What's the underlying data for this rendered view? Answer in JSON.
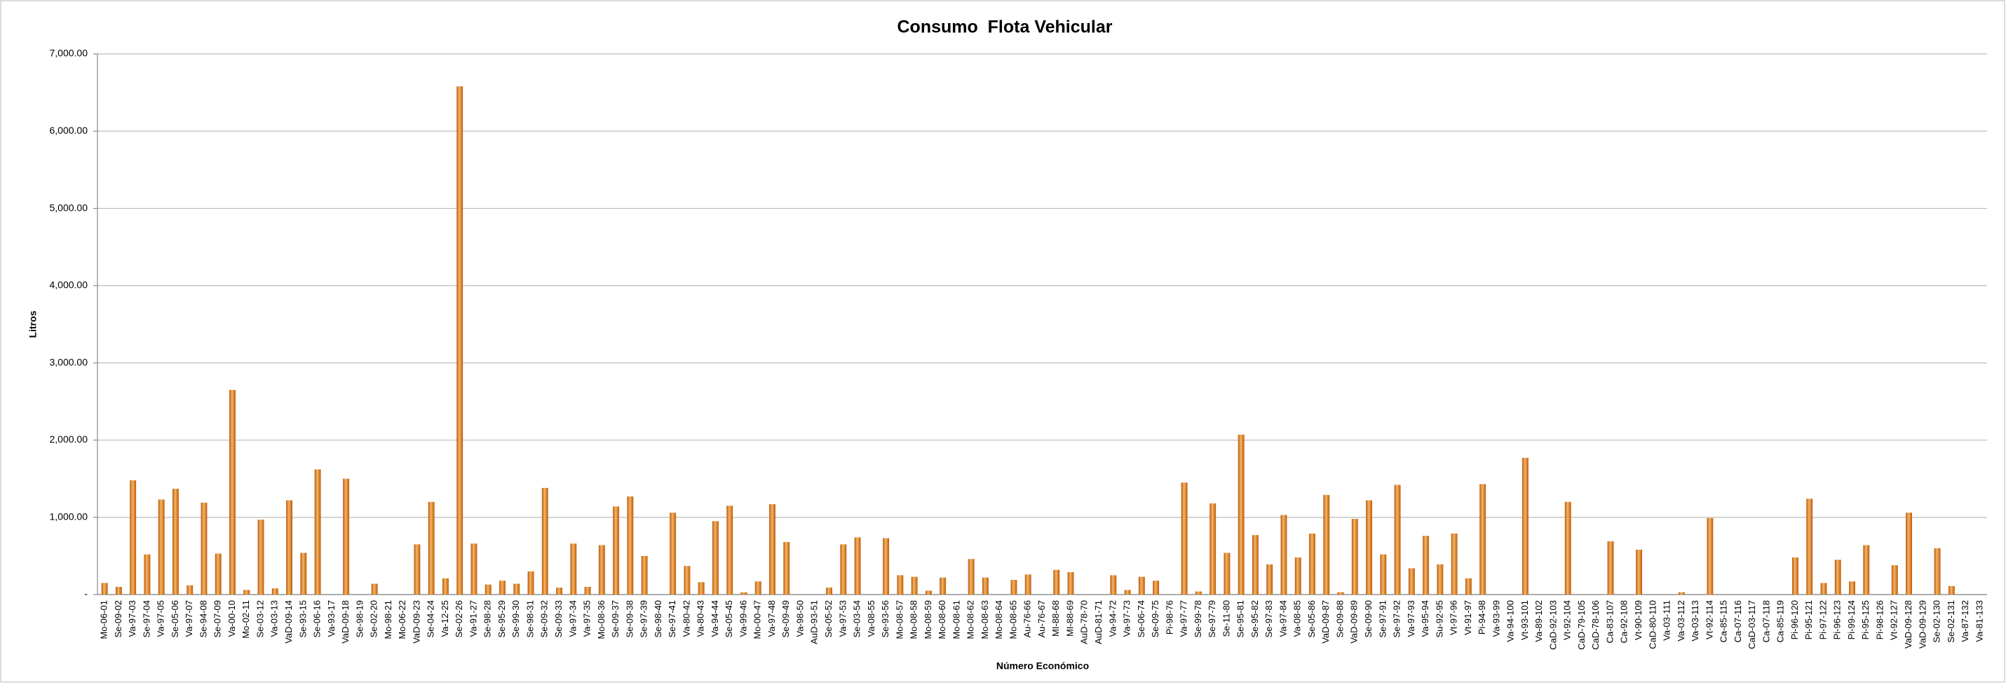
{
  "chart_data": {
    "type": "bar",
    "title": "Consumo  Flota Vehicular",
    "x_label": "Número Económico",
    "y_label": "Litros",
    "color": "#e8821e",
    "grid": true,
    "ylim": [
      0,
      7000
    ],
    "yticks": [
      {
        "value": 0,
        "label": "-"
      },
      {
        "value": 1000,
        "label": "1,000.00"
      },
      {
        "value": 2000,
        "label": "2,000.00"
      },
      {
        "value": 3000,
        "label": "3,000.00"
      },
      {
        "value": 4000,
        "label": "4,000.00"
      },
      {
        "value": 5000,
        "label": "5,000.00"
      },
      {
        "value": 6000,
        "label": "6,000.00"
      },
      {
        "value": 7000,
        "label": "7,000.00"
      }
    ],
    "categories": [
      "Mo-06-01",
      "Se-09-02",
      "Va-97-03",
      "Se-97-04",
      "Va-97-05",
      "Se-05-06",
      "Va-97-07",
      "Se-94-08",
      "Se-07-09",
      "Va-00-10",
      "Mo-02-11",
      "Se-03-12",
      "Va-03-13",
      "VaD-09-14",
      "Se-93-15",
      "Se-06-16",
      "Va-93-17",
      "VaD-09-18",
      "Se-98-19",
      "Se-02-20",
      "Mo-98-21",
      "Mo-06-22",
      "VaD-09-23",
      "Se-04-24",
      "Va-12-25",
      "Se-02-26",
      "Va-91-27",
      "Se-98-28",
      "Se-95-29",
      "Se-99-30",
      "Se-98-31",
      "Se-09-32",
      "Se-09-33",
      "Va-97-34",
      "Va-97-35",
      "Mo-08-36",
      "Se-09-37",
      "Se-09-38",
      "Se-97-39",
      "Se-98-40",
      "Se-97-41",
      "Va-80-42",
      "Va-80-43",
      "Va-94-44",
      "Se-05-45",
      "Va-99-46",
      "Mo-00-47",
      "Va-97-48",
      "Se-09-49",
      "Va-98-50",
      "AuD-93-51",
      "Se-05-52",
      "Va-97-53",
      "Se-03-54",
      "Va-08-55",
      "Se-93-56",
      "Mo-08-57",
      "Mo-08-58",
      "Mo-08-59",
      "Mo-08-60",
      "Mo-08-61",
      "Mo-08-62",
      "Mo-08-63",
      "Mo-08-64",
      "Mo-08-65",
      "Au-76-66",
      "Au-76-67",
      "MI-88-68",
      "MI-88-69",
      "AuD-78-70",
      "AuD-81-71",
      "Va-94-72",
      "Va-97-73",
      "Se-06-74",
      "Se-09-75",
      "Pi-98-76",
      "Va-97-77",
      "Se-99-78",
      "Se-97-79",
      "Se-11-80",
      "Se-95-81",
      "Se-95-82",
      "Se-97-83",
      "Va-97-84",
      "Va-08-85",
      "Se-05-86",
      "VaD-09-87",
      "Se-09-88",
      "VaD-09-89",
      "Se-09-90",
      "Se-97-91",
      "Se-97-92",
      "Va-97-93",
      "Va-95-94",
      "Su-92-95",
      "Vt-97-96",
      "Vt-91-97",
      "Pi-94-98",
      "Va-93-99",
      "Va-94-100",
      "Vt-93-101",
      "Va-89-102",
      "CaD-92-103",
      "Vt-92-104",
      "CaD-79-105",
      "CaD-78-106",
      "Ca-83-107",
      "Ca-92-108",
      "Vt-90-109",
      "CaD-80-110",
      "Va-03-111",
      "Va-03-112",
      "Va-03-113",
      "Vt-92-114",
      "Ca-85-115",
      "Ca-07-116",
      "CaD-03-117",
      "Ca-07-118",
      "Ca-85-119",
      "Pi-96-120",
      "Pi-95-121",
      "Pi-97-122",
      "Pi-96-123",
      "Pi-99-124",
      "Pi-95-125",
      "Pi-98-126",
      "Vt-92-127",
      "VaD-09-128",
      "VaD-09-129",
      "Se-02-130",
      "Se-02-131",
      "Va-87-132",
      "Va-81-133"
    ],
    "values": [
      150,
      100,
      1480,
      520,
      1230,
      1370,
      120,
      1190,
      530,
      2650,
      60,
      970,
      80,
      1220,
      540,
      1620,
      0,
      1500,
      0,
      140,
      0,
      0,
      650,
      1200,
      210,
      6580,
      660,
      130,
      180,
      140,
      300,
      1380,
      90,
      660,
      100,
      640,
      1140,
      1270,
      500,
      0,
      1060,
      370,
      160,
      950,
      1150,
      30,
      170,
      1170,
      680,
      0,
      0,
      90,
      650,
      740,
      0,
      730,
      250,
      230,
      50,
      220,
      0,
      460,
      220,
      0,
      190,
      260,
      0,
      320,
      290,
      0,
      0,
      250,
      60,
      230,
      180,
      0,
      1450,
      40,
      1180,
      540,
      2070,
      770,
      390,
      1030,
      480,
      790,
      1290,
      30,
      980,
      1220,
      520,
      1420,
      340,
      760,
      390,
      790,
      210,
      1430,
      0,
      0,
      1770,
      0,
      0,
      1200,
      0,
      0,
      690,
      0,
      580,
      0,
      0,
      30,
      0,
      990,
      0,
      0,
      0,
      0,
      0,
      480,
      1240,
      150,
      450,
      170,
      640,
      0,
      380,
      1060,
      0,
      600,
      110,
      0,
      0
    ]
  }
}
